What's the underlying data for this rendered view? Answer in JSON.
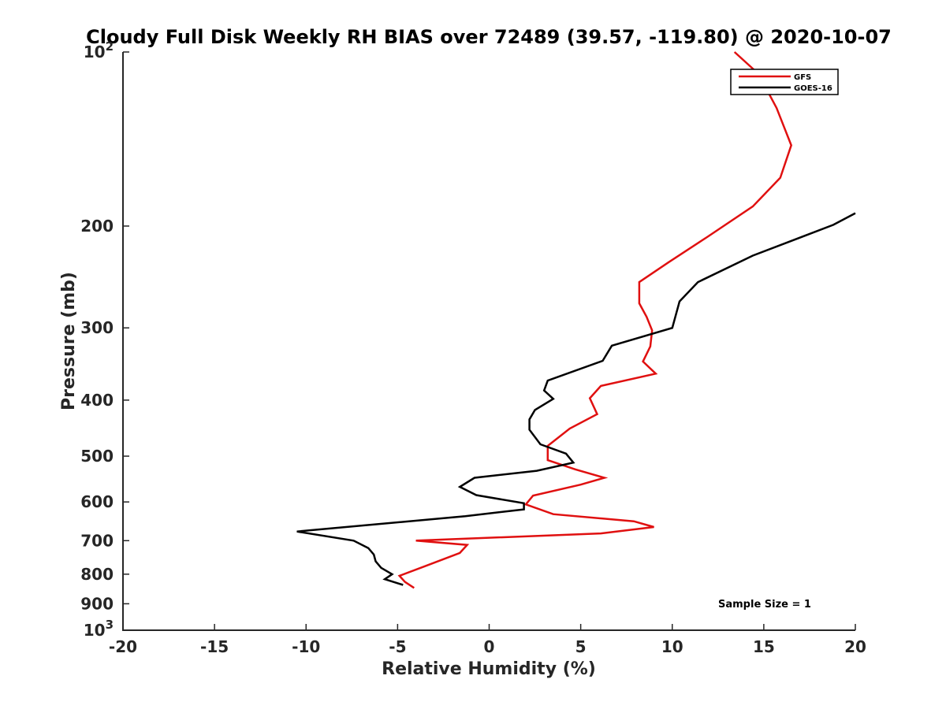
{
  "chart_data": {
    "type": "line",
    "title": "Cloudy Full Disk Weekly RH BIAS over 72489 (39.57, -119.80) @ 2020-10-07",
    "xlabel": "Relative Humidity (%)",
    "ylabel": "Pressure (mb)",
    "xlim": [
      -20,
      20
    ],
    "ylim": [
      100,
      1000
    ],
    "yscale": "log",
    "y_reversed": true,
    "x_ticks": [
      "-20",
      "-15",
      "-10",
      "-5",
      "0",
      "5",
      "10",
      "15",
      "20"
    ],
    "y_ticks": [
      {
        "value": 100,
        "base": "10",
        "exp": "2"
      },
      {
        "value": 200,
        "label": "200"
      },
      {
        "value": 300,
        "label": "300"
      },
      {
        "value": 400,
        "label": "400"
      },
      {
        "value": 500,
        "label": "500"
      },
      {
        "value": 600,
        "label": "600"
      },
      {
        "value": 700,
        "label": "700"
      },
      {
        "value": 800,
        "label": "800"
      },
      {
        "value": 900,
        "label": "900"
      },
      {
        "value": 1000,
        "base": "10",
        "exp": "3"
      }
    ],
    "legend_position": "top-right",
    "annotation": "Sample Size = 1",
    "series": [
      {
        "name": "GFS",
        "color": "#e01010",
        "x": [
          13.4,
          14.7,
          15.7,
          16.5,
          15.9,
          14.4,
          11.9,
          9.8,
          8.2,
          8.2,
          8.6,
          8.9,
          8.8,
          8.4,
          9.1,
          6.1,
          5.5,
          5.9,
          4.4,
          3.2,
          3.2,
          4.7,
          6.3,
          5.0,
          2.4,
          2.0,
          3.5,
          7.9,
          9.0,
          6.1,
          -4.0,
          -1.2,
          -1.6,
          -3.5,
          -4.9,
          -4.6,
          -4.1
        ],
        "y": [
          100,
          109,
          125,
          145,
          165,
          185,
          209,
          231,
          250,
          272,
          287,
          303,
          323,
          343,
          360,
          378,
          397,
          423,
          448,
          480,
          508,
          527,
          545,
          560,
          585,
          606,
          630,
          648,
          663,
          680,
          700,
          712,
          735,
          775,
          805,
          825,
          845
        ]
      },
      {
        "name": "GOES-16",
        "color": "#000000",
        "x": [
          20.0,
          18.8,
          14.4,
          11.4,
          10.4,
          10.0,
          6.7,
          6.2,
          3.2,
          3.0,
          3.5,
          2.5,
          2.2,
          2.2,
          2.8,
          4.2,
          4.6,
          2.6,
          -0.8,
          -1.6,
          -0.7,
          1.9,
          1.9,
          -1.3,
          -10.5,
          -7.4,
          -6.6,
          -6.3,
          -6.2,
          -5.9,
          -5.3,
          -5.7,
          -4.7
        ],
        "y": [
          190,
          199,
          225,
          250,
          270,
          300,
          322,
          342,
          370,
          385,
          398,
          416,
          432,
          450,
          477,
          495,
          513,
          530,
          545,
          565,
          584,
          603,
          618,
          635,
          675,
          700,
          721,
          740,
          760,
          780,
          800,
          816,
          835
        ]
      }
    ]
  }
}
